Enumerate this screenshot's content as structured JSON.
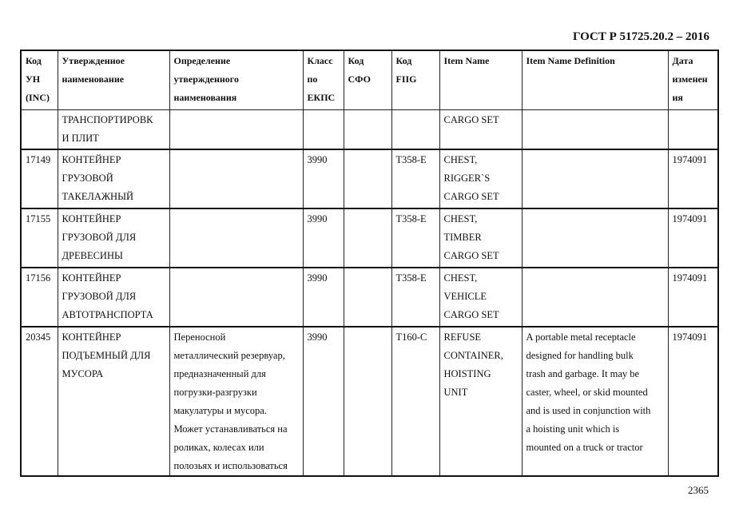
{
  "header": {
    "standard": "ГОСТ Р 51725.20.2 – 2016"
  },
  "footer": {
    "page_number": "2365"
  },
  "table": {
    "columns": [
      "Код\nУН\n(INC)",
      "Утвержденное\nнаименование",
      "Определение\nутвержденного\nнаименования",
      "Класс\nпо\nЕКПС",
      "Код\nСФО",
      "Код\nFIIG",
      "Item Name",
      "Item Name Definition",
      "Дата\nизменен\nия"
    ],
    "rows": [
      [
        "",
        "ТРАНСПОРТИРОВК\nИ ПЛИТ",
        "",
        "",
        "",
        "",
        "CARGO SET",
        "",
        ""
      ],
      [
        "17149",
        "КОНТЕЙНЕР\nГРУЗОВОЙ\nТАКЕЛАЖНЫЙ",
        "",
        "3990",
        "",
        "T358-E",
        "CHEST,\nRIGGER`S\nCARGO SET",
        "",
        "1974091"
      ],
      [
        "17155",
        "КОНТЕЙНЕР\nГРУЗОВОЙ ДЛЯ\nДРЕВЕСИНЫ",
        "",
        "3990",
        "",
        "T358-E",
        "CHEST,\nTIMBER\nCARGO SET",
        "",
        "1974091"
      ],
      [
        "17156",
        "КОНТЕЙНЕР\nГРУЗОВОЙ ДЛЯ\nАВТОТРАНСПОРТА",
        "",
        "3990",
        "",
        "T358-E",
        "CHEST,\nVEHICLE\nCARGO SET",
        "",
        "1974091"
      ],
      [
        "20345",
        "КОНТЕЙНЕР\nПОДЪЕМНЫЙ ДЛЯ\nМУСОРА",
        "Переносной\nметаллический резервуар,\nпредназначенный для\nпогрузки-разгрузки\nмакулатуры и мусора.\nМожет устанавливаться на\nроликах, колесах или\nполозьях и использоваться",
        "3990",
        "",
        "T160-C",
        "REFUSE\nCONTAINER,\nHOISTING\nUNIT",
        "A portable metal receptacle\ndesigned for handling bulk\ntrash and garbage. It may be\ncaster, wheel, or skid mounted\nand is used in conjunction with\na hoisting unit which is\nmounted on a truck or tractor",
        "1974091"
      ]
    ]
  }
}
